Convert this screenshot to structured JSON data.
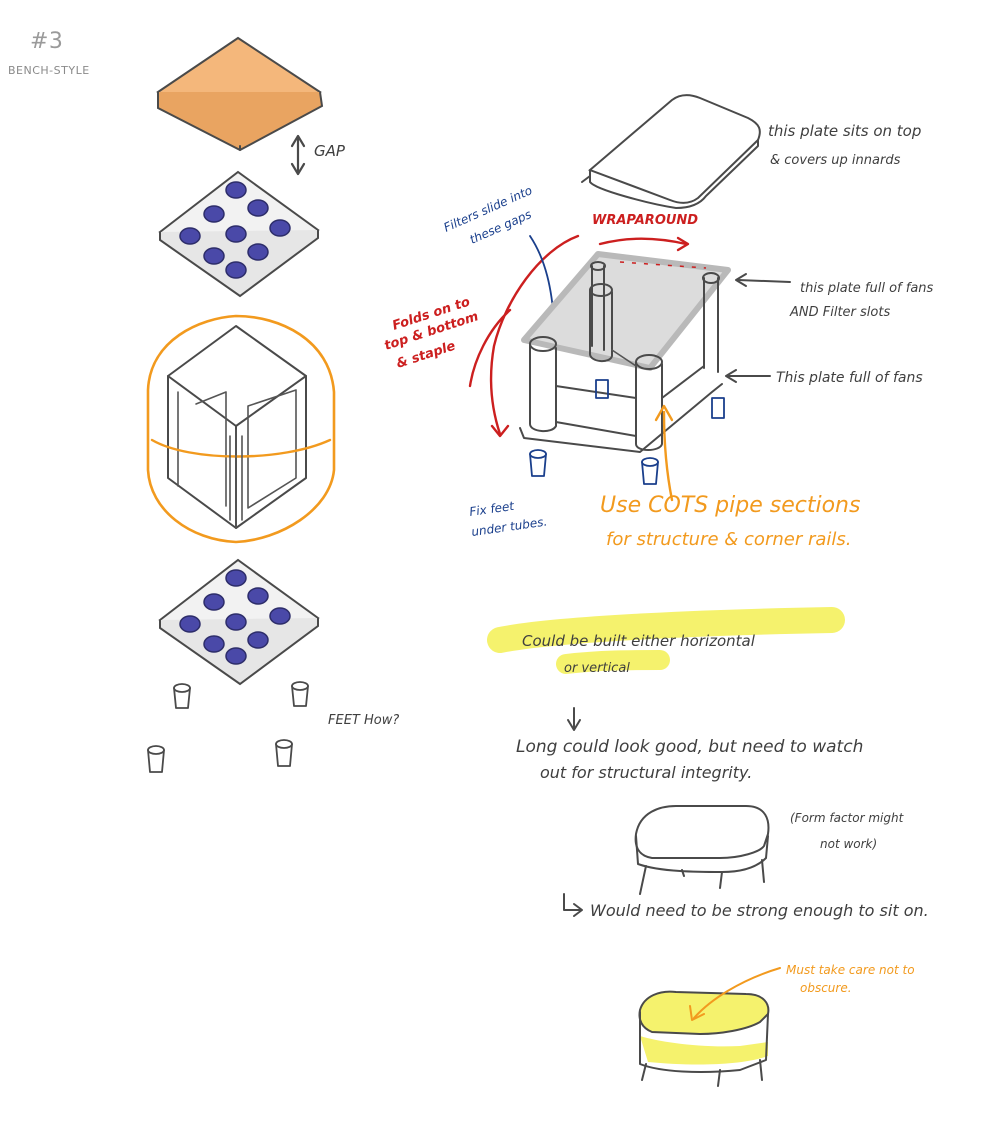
{
  "header": {
    "number": "#3",
    "style": "BENCH-STYLE"
  },
  "left_stack": {
    "gap_label": "GAP",
    "feet_label": "FEET How?"
  },
  "right_annotations": {
    "top_plate_line1": "this plate sits on top",
    "top_plate_line2": "& covers up innards",
    "wraparound": "WRAPAROUND",
    "filter_line1": "Filters slide into",
    "filter_line2": "these gaps",
    "folds_line1": "Folds on to",
    "folds_line2": "top & bottom",
    "folds_line3": "& staple",
    "middle_plate_line1": "this plate full of fans",
    "middle_plate_line2": "AND Filter slots",
    "bottom_plate": "This plate full of fans",
    "feet_line1": "Fix feet",
    "feet_line2": "under tubes.",
    "cots_line1": "Use COTS pipe sections",
    "cots_line2": "for structure & corner rails."
  },
  "notes": {
    "build_line1": "Could be built either horizontal",
    "build_line2": "or vertical",
    "long_line1": "Long could look good, but need to watch",
    "long_line2": "out for structural integrity.",
    "form_line1": "(Form factor might",
    "form_line2": "not work)",
    "strong": "Would need to be strong enough to sit on.",
    "care_line1": "Must take care not to",
    "care_line2": "obscure."
  },
  "colors": {
    "ink": "#4a4a4a",
    "red": "#cc1f1f",
    "blue": "#1a3f8c",
    "orange": "#f29a1e",
    "highlight": "#f2ee3c",
    "fan_fill": "#4a49a8",
    "plate_fill": "#f4b77b"
  }
}
